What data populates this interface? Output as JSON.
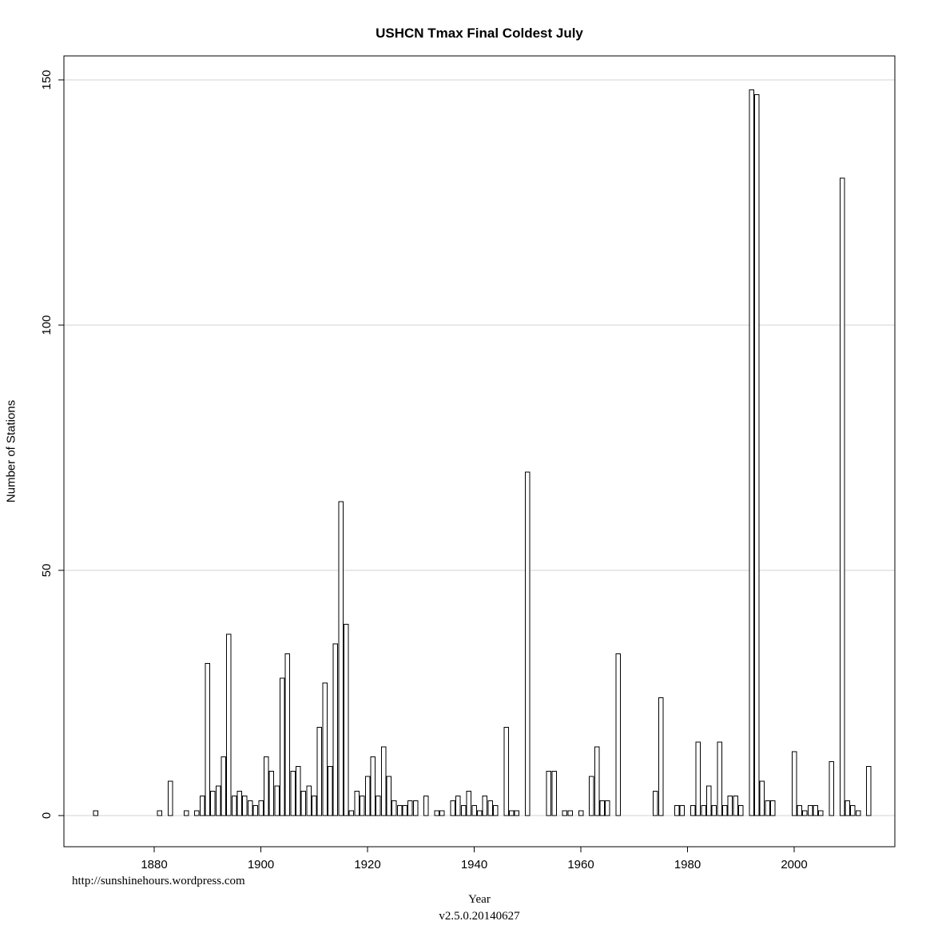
{
  "page": {
    "background": "#ffffff"
  },
  "chart_data": {
    "type": "bar",
    "title": "USHCN Tmax Final Coldest July",
    "xlabel": "Year",
    "ylabel": "Number of Stations",
    "footer_url": "http://sunshinehours.wordpress.com",
    "version_label": "v2.5.0.20140627",
    "xlim": [
      1863,
      2019
    ],
    "ylim": [
      0,
      150
    ],
    "xticks": [
      1880,
      1900,
      1920,
      1940,
      1960,
      1980,
      2000
    ],
    "yticks": [
      0,
      50,
      100,
      150
    ],
    "grid": {
      "horizontal": true,
      "vertical": false
    },
    "legend": "none",
    "colors": {
      "bar_fill": "#ffffff",
      "bar_stroke": "#000000",
      "grid": "#d3d3d3",
      "axis": "#000000",
      "text": "#000000"
    },
    "points": [
      {
        "year": 1869,
        "count": 1
      },
      {
        "year": 1881,
        "count": 1
      },
      {
        "year": 1883,
        "count": 7
      },
      {
        "year": 1886,
        "count": 1
      },
      {
        "year": 1888,
        "count": 1
      },
      {
        "year": 1889,
        "count": 4
      },
      {
        "year": 1890,
        "count": 31
      },
      {
        "year": 1891,
        "count": 5
      },
      {
        "year": 1892,
        "count": 6
      },
      {
        "year": 1893,
        "count": 12
      },
      {
        "year": 1894,
        "count": 37
      },
      {
        "year": 1895,
        "count": 4
      },
      {
        "year": 1896,
        "count": 5
      },
      {
        "year": 1897,
        "count": 4
      },
      {
        "year": 1898,
        "count": 3
      },
      {
        "year": 1899,
        "count": 2
      },
      {
        "year": 1900,
        "count": 3
      },
      {
        "year": 1901,
        "count": 12
      },
      {
        "year": 1902,
        "count": 9
      },
      {
        "year": 1903,
        "count": 6
      },
      {
        "year": 1904,
        "count": 28
      },
      {
        "year": 1905,
        "count": 33
      },
      {
        "year": 1906,
        "count": 9
      },
      {
        "year": 1907,
        "count": 10
      },
      {
        "year": 1908,
        "count": 5
      },
      {
        "year": 1909,
        "count": 6
      },
      {
        "year": 1910,
        "count": 4
      },
      {
        "year": 1911,
        "count": 18
      },
      {
        "year": 1912,
        "count": 27
      },
      {
        "year": 1913,
        "count": 10
      },
      {
        "year": 1914,
        "count": 35
      },
      {
        "year": 1915,
        "count": 64
      },
      {
        "year": 1916,
        "count": 39
      },
      {
        "year": 1917,
        "count": 1
      },
      {
        "year": 1918,
        "count": 5
      },
      {
        "year": 1919,
        "count": 4
      },
      {
        "year": 1920,
        "count": 8
      },
      {
        "year": 1921,
        "count": 12
      },
      {
        "year": 1922,
        "count": 4
      },
      {
        "year": 1923,
        "count": 14
      },
      {
        "year": 1924,
        "count": 8
      },
      {
        "year": 1925,
        "count": 3
      },
      {
        "year": 1926,
        "count": 2
      },
      {
        "year": 1927,
        "count": 2
      },
      {
        "year": 1928,
        "count": 3
      },
      {
        "year": 1929,
        "count": 3
      },
      {
        "year": 1931,
        "count": 4
      },
      {
        "year": 1933,
        "count": 1
      },
      {
        "year": 1934,
        "count": 1
      },
      {
        "year": 1936,
        "count": 3
      },
      {
        "year": 1937,
        "count": 4
      },
      {
        "year": 1938,
        "count": 2
      },
      {
        "year": 1939,
        "count": 5
      },
      {
        "year": 1940,
        "count": 2
      },
      {
        "year": 1941,
        "count": 1
      },
      {
        "year": 1942,
        "count": 4
      },
      {
        "year": 1943,
        "count": 3
      },
      {
        "year": 1944,
        "count": 2
      },
      {
        "year": 1946,
        "count": 18
      },
      {
        "year": 1947,
        "count": 1
      },
      {
        "year": 1948,
        "count": 1
      },
      {
        "year": 1950,
        "count": 70
      },
      {
        "year": 1954,
        "count": 9
      },
      {
        "year": 1955,
        "count": 9
      },
      {
        "year": 1957,
        "count": 1
      },
      {
        "year": 1958,
        "count": 1
      },
      {
        "year": 1960,
        "count": 1
      },
      {
        "year": 1962,
        "count": 8
      },
      {
        "year": 1963,
        "count": 14
      },
      {
        "year": 1964,
        "count": 3
      },
      {
        "year": 1965,
        "count": 3
      },
      {
        "year": 1967,
        "count": 33
      },
      {
        "year": 1974,
        "count": 5
      },
      {
        "year": 1975,
        "count": 24
      },
      {
        "year": 1978,
        "count": 2
      },
      {
        "year": 1979,
        "count": 2
      },
      {
        "year": 1981,
        "count": 2
      },
      {
        "year": 1982,
        "count": 15
      },
      {
        "year": 1983,
        "count": 2
      },
      {
        "year": 1984,
        "count": 6
      },
      {
        "year": 1985,
        "count": 2
      },
      {
        "year": 1986,
        "count": 15
      },
      {
        "year": 1987,
        "count": 2
      },
      {
        "year": 1988,
        "count": 4
      },
      {
        "year": 1989,
        "count": 4
      },
      {
        "year": 1990,
        "count": 2
      },
      {
        "year": 1992,
        "count": 148
      },
      {
        "year": 1993,
        "count": 147
      },
      {
        "year": 1994,
        "count": 7
      },
      {
        "year": 1995,
        "count": 3
      },
      {
        "year": 1996,
        "count": 3
      },
      {
        "year": 2000,
        "count": 13
      },
      {
        "year": 2001,
        "count": 2
      },
      {
        "year": 2002,
        "count": 1
      },
      {
        "year": 2003,
        "count": 2
      },
      {
        "year": 2004,
        "count": 2
      },
      {
        "year": 2005,
        "count": 1
      },
      {
        "year": 2007,
        "count": 11
      },
      {
        "year": 2009,
        "count": 130
      },
      {
        "year": 2010,
        "count": 3
      },
      {
        "year": 2011,
        "count": 2
      },
      {
        "year": 2012,
        "count": 1
      },
      {
        "year": 2014,
        "count": 10
      }
    ]
  }
}
